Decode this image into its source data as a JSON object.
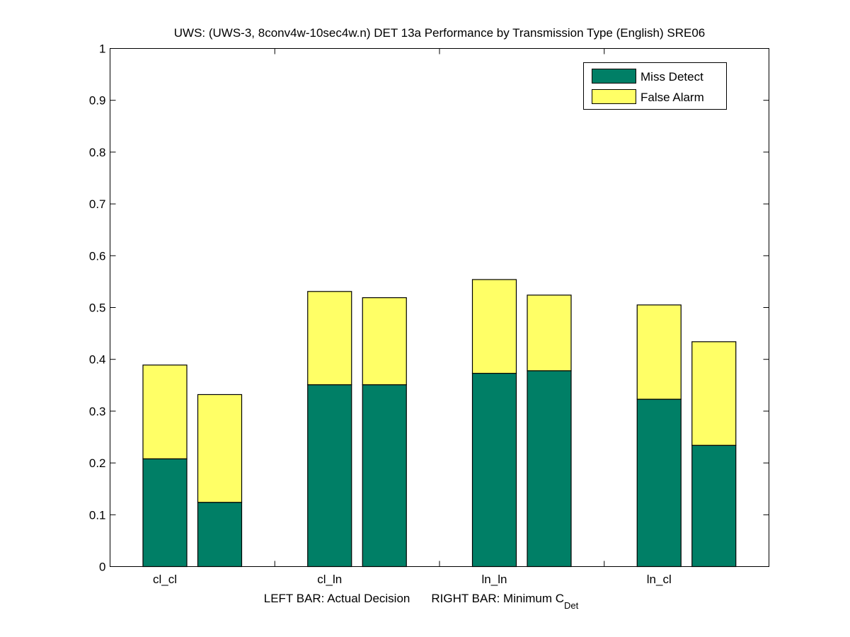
{
  "chart_data": {
    "type": "bar",
    "stacked": true,
    "title": "UWS: (UWS-3, 8conv4w-10sec4w.n) DET 13a Performance by Transmission Type (English) SRE06",
    "xlabel_left": "LEFT BAR: Actual Decision",
    "xlabel_right": "RIGHT BAR: Minimum C",
    "xlabel_subscript": "Det",
    "ylabel": "",
    "ylim": [
      0,
      1
    ],
    "yticks": [
      "0",
      "0.1",
      "0.2",
      "0.3",
      "0.4",
      "0.5",
      "0.6",
      "0.7",
      "0.8",
      "0.9",
      "1"
    ],
    "categories": [
      "cl_cl",
      "cl_ln",
      "ln_ln",
      "ln_cl"
    ],
    "bar_roles": [
      "Actual Decision",
      "Minimum C_Det"
    ],
    "series": [
      {
        "name": "Miss Detect",
        "color": "#007f66",
        "values": [
          [
            0.208,
            0.124
          ],
          [
            0.351,
            0.351
          ],
          [
            0.373,
            0.378
          ],
          [
            0.323,
            0.234
          ]
        ]
      },
      {
        "name": "False Alarm",
        "color": "#ffff66",
        "values": [
          [
            0.181,
            0.208
          ],
          [
            0.18,
            0.168
          ],
          [
            0.181,
            0.146
          ],
          [
            0.182,
            0.2
          ]
        ]
      }
    ],
    "totals": [
      [
        0.389,
        0.332
      ],
      [
        0.531,
        0.519
      ],
      [
        0.554,
        0.524
      ],
      [
        0.505,
        0.434
      ]
    ],
    "legend": [
      "Miss Detect",
      "False Alarm"
    ],
    "legend_position": "top-right",
    "grid": false
  }
}
